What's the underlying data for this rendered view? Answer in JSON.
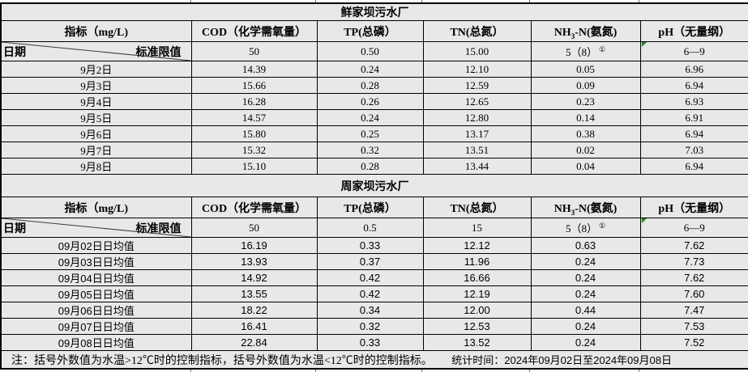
{
  "colors": {
    "cell_background": "#e8e8e8",
    "border": "#000000",
    "corner_marker_green": "#1d8a1d",
    "text": "#000000"
  },
  "sections": [
    {
      "title": "鲜家坝污水厂",
      "indicator_header": "指标（mg/L)",
      "corner": {
        "row_label": "日期",
        "col_label": "标准限值"
      },
      "columns": {
        "cod": "COD（化学需氧量）",
        "tp": "TP(总磷）",
        "tn": "TN(总氮）",
        "nh3_pre": "NH",
        "nh3_sub": "3",
        "nh3_post": "-N(氨氮)",
        "ph": "pH（无量纲）"
      },
      "limits": {
        "cod": "50",
        "tp": "0.50",
        "tn": "15.00",
        "nh3": "5（8）",
        "nh3_sup": "①",
        "ph": "6—9"
      },
      "rows": [
        {
          "date": "9月2日",
          "cod": "14.39",
          "tp": "0.24",
          "tn": "12.10",
          "nh3": "0.05",
          "ph": "6.96"
        },
        {
          "date": "9月3日",
          "cod": "15.66",
          "tp": "0.28",
          "tn": "12.59",
          "nh3": "0.09",
          "ph": "6.94"
        },
        {
          "date": "9月4日",
          "cod": "16.28",
          "tp": "0.26",
          "tn": "12.65",
          "nh3": "0.23",
          "ph": "6.93"
        },
        {
          "date": "9月5日",
          "cod": "14.57",
          "tp": "0.24",
          "tn": "12.80",
          "nh3": "0.14",
          "ph": "6.91"
        },
        {
          "date": "9月6日",
          "cod": "15.80",
          "tp": "0.25",
          "tn": "13.17",
          "nh3": "0.38",
          "ph": "6.94"
        },
        {
          "date": "9月7日",
          "cod": "15.32",
          "tp": "0.32",
          "tn": "13.51",
          "nh3": "0.02",
          "ph": "7.03"
        },
        {
          "date": "9月8日",
          "cod": "15.10",
          "tp": "0.28",
          "tn": "13.44",
          "nh3": "0.04",
          "ph": "6.94"
        }
      ]
    },
    {
      "title": "周家坝污水厂",
      "indicator_header": "指标（mg/L)",
      "corner": {
        "row_label": "日期",
        "col_label": "标准限值"
      },
      "columns": {
        "cod": "COD（化学需氧量）",
        "tp": "TP(总磷）",
        "tn": "TN(总氮）",
        "nh3_pre": "NH",
        "nh3_sub": "3",
        "nh3_post": "-N(氨氮)",
        "ph": "pH（无量纲）"
      },
      "limits": {
        "cod": "50",
        "tp": "0.5",
        "tn": "15",
        "nh3": "5（8）",
        "nh3_sup": "①",
        "ph": "6—9"
      },
      "rows": [
        {
          "date": "09月02日日均值",
          "cod": "16.19",
          "tp": "0.33",
          "tn": "12.12",
          "nh3": "0.63",
          "ph": "7.62"
        },
        {
          "date": "09月03日日均值",
          "cod": "13.93",
          "tp": "0.37",
          "tn": "11.96",
          "nh3": "0.24",
          "ph": "7.73"
        },
        {
          "date": "09月04日日均值",
          "cod": "14.92",
          "tp": "0.42",
          "tn": "16.66",
          "nh3": "0.24",
          "ph": "7.62"
        },
        {
          "date": "09月05日日均值",
          "cod": "13.55",
          "tp": "0.42",
          "tn": "12.19",
          "nh3": "0.24",
          "ph": "7.60"
        },
        {
          "date": "09月06日日均值",
          "cod": "18.22",
          "tp": "0.34",
          "tn": "12.00",
          "nh3": "0.44",
          "ph": "7.47"
        },
        {
          "date": "09月07日日均值",
          "cod": "16.41",
          "tp": "0.32",
          "tn": "12.53",
          "nh3": "0.24",
          "ph": "7.53"
        },
        {
          "date": "09月08日日均值",
          "cod": "22.84",
          "tp": "0.33",
          "tn": "13.52",
          "nh3": "0.24",
          "ph": "7.52"
        }
      ]
    }
  ],
  "footer": {
    "note": "注：括号外数值为水温>12℃时的控制指标，括号外数值为水温<12℃时的控制指标。",
    "stats": "统计时间：2024年09月02日至2024年09月08日"
  }
}
